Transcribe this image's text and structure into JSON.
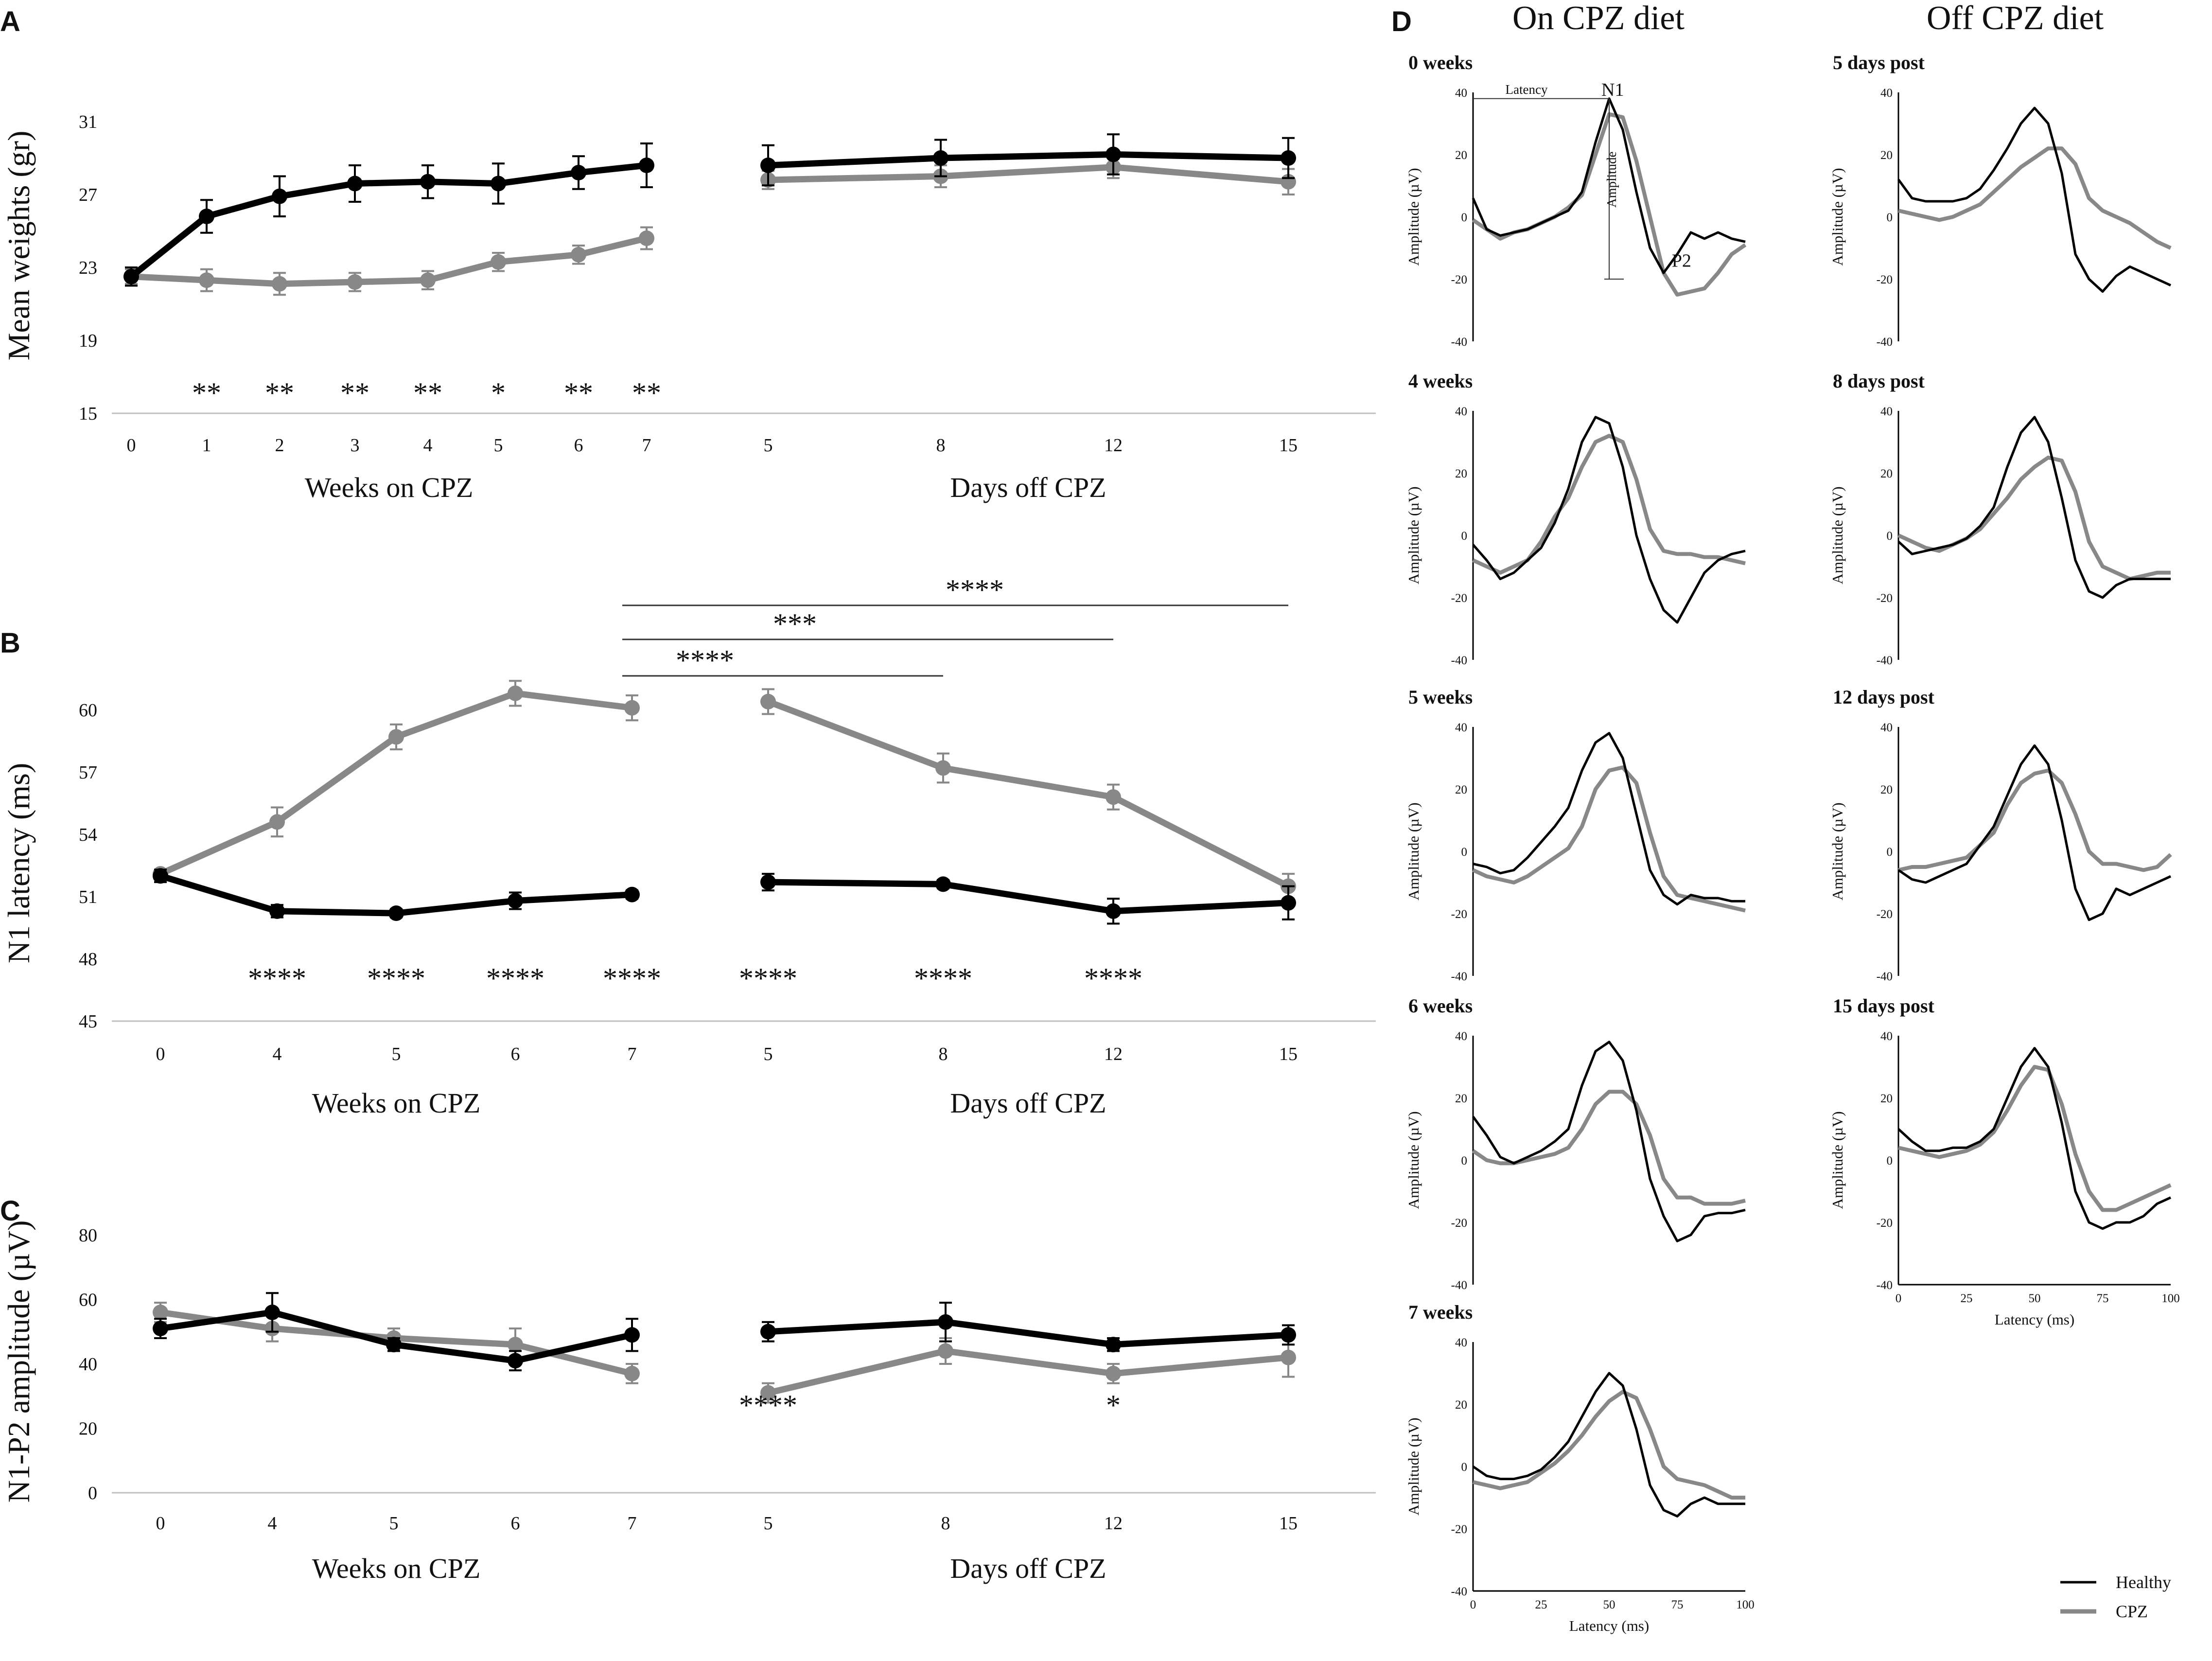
{
  "panel_labels": {
    "a": "A",
    "b": "B",
    "c": "C",
    "d": "D"
  },
  "colors": {
    "healthy": "#000000",
    "cpz": "#888888",
    "axis": "#bfbfbf"
  },
  "chart_data": [
    {
      "id": "A",
      "type": "line",
      "ylabel": "Mean weights (gr)",
      "ylim": [
        15,
        31
      ],
      "yticks": [
        "15",
        "19",
        "23",
        "27",
        "31"
      ],
      "left": {
        "xlabel": "Weeks on CPZ",
        "x": [
          "0",
          "1",
          "2",
          "3",
          "4",
          "5",
          "6",
          "7"
        ],
        "series": [
          {
            "name": "Healthy",
            "values": [
              22.5,
              25.8,
              26.9,
              27.6,
              27.7,
              27.6,
              28.2,
              28.6
            ],
            "err": [
              0.5,
              0.9,
              1.1,
              1.0,
              0.9,
              1.1,
              0.9,
              1.2
            ]
          },
          {
            "name": "CPZ",
            "values": [
              22.5,
              22.3,
              22.1,
              22.2,
              22.3,
              23.3,
              23.7,
              24.6
            ],
            "err": [
              0.4,
              0.6,
              0.6,
              0.5,
              0.5,
              0.5,
              0.5,
              0.6
            ]
          }
        ],
        "stars": [
          "",
          "**",
          "**",
          "**",
          "**",
          "*",
          "**",
          "**"
        ]
      },
      "right": {
        "xlabel": "Days off CPZ",
        "x": [
          "5",
          "8",
          "12",
          "15"
        ],
        "series": [
          {
            "name": "Healthy",
            "values": [
              28.6,
              29.0,
              29.2,
              29.0
            ],
            "err": [
              1.1,
              1.0,
              1.1,
              1.1
            ]
          },
          {
            "name": "CPZ",
            "values": [
              27.8,
              28.0,
              28.5,
              27.7
            ],
            "err": [
              0.5,
              0.6,
              0.6,
              0.7
            ]
          }
        ]
      }
    },
    {
      "id": "B",
      "type": "line",
      "ylabel": "N1 latency (ms)",
      "ylim": [
        45,
        60
      ],
      "yticks": [
        "45",
        "48",
        "51",
        "54",
        "57",
        "60"
      ],
      "left": {
        "xlabel": "Weeks on CPZ",
        "x": [
          "0",
          "4",
          "5",
          "6",
          "7"
        ],
        "series": [
          {
            "name": "Healthy",
            "values": [
              52.0,
              50.3,
              50.2,
              50.8,
              51.1
            ],
            "err": [
              0.3,
              0.3,
              0.2,
              0.4,
              0.2
            ]
          },
          {
            "name": "CPZ",
            "values": [
              52.1,
              54.6,
              58.7,
              60.8,
              60.1
            ],
            "err": [
              0.2,
              0.7,
              0.6,
              0.6,
              0.6
            ]
          }
        ],
        "stars": [
          "",
          "****",
          "****",
          "****",
          "****"
        ]
      },
      "right": {
        "xlabel": "Days off CPZ",
        "x": [
          "5",
          "8",
          "12",
          "15"
        ],
        "series": [
          {
            "name": "Healthy",
            "values": [
              51.7,
              51.6,
              50.3,
              50.7
            ],
            "err": [
              0.4,
              0.2,
              0.6,
              0.8
            ]
          },
          {
            "name": "CPZ",
            "values": [
              60.4,
              57.2,
              55.8,
              51.5
            ],
            "err": [
              0.6,
              0.7,
              0.6,
              0.6
            ]
          }
        ],
        "stars": [
          "****",
          "****",
          "****",
          ""
        ]
      },
      "brackets": [
        {
          "from": "7 weeks",
          "to": "8 days",
          "label": "****"
        },
        {
          "from": "7 weeks",
          "to": "12 days",
          "label": "***"
        },
        {
          "from": "7 weeks",
          "to": "15 days",
          "label": "****"
        }
      ]
    },
    {
      "id": "C",
      "type": "line",
      "ylabel": "N1-P2 amplitude (µV)",
      "ylim": [
        0,
        80
      ],
      "yticks": [
        "0",
        "20",
        "40",
        "60",
        "80"
      ],
      "left": {
        "xlabel": "Weeks on CPZ",
        "x": [
          "0",
          "4",
          "5",
          "6",
          "7"
        ],
        "series": [
          {
            "name": "Healthy",
            "values": [
              51,
              56,
              46,
              41,
              49
            ],
            "err": [
              3,
              6,
              2,
              3,
              5
            ]
          },
          {
            "name": "CPZ",
            "values": [
              56,
              51,
              48,
              46,
              37
            ],
            "err": [
              3,
              4,
              3,
              5,
              3
            ]
          }
        ]
      },
      "right": {
        "xlabel": "Days off CPZ",
        "x": [
          "5",
          "8",
          "12",
          "15"
        ],
        "series": [
          {
            "name": "Healthy",
            "values": [
              50,
              53,
              46,
              49
            ],
            "err": [
              3,
              6,
              2,
              3
            ]
          },
          {
            "name": "CPZ",
            "values": [
              31,
              44,
              37,
              42
            ],
            "err": [
              3,
              4,
              3,
              6
            ]
          }
        ],
        "stars": [
          "****",
          "",
          "*",
          ""
        ]
      }
    },
    {
      "id": "D",
      "type": "line",
      "col_titles": [
        "On CPZ diet",
        "Off CPZ diet"
      ],
      "ylabel": "Amplitude (µV)",
      "xlabel": "Latency (ms)",
      "yticks": [
        "40",
        "20",
        "0",
        "-20",
        "-40"
      ],
      "xticks": [
        "0",
        "25",
        "50",
        "75",
        "100"
      ],
      "xlim": [
        0,
        100
      ],
      "ylim": [
        -40,
        40
      ],
      "x": [
        0,
        5,
        10,
        15,
        20,
        25,
        30,
        35,
        40,
        45,
        50,
        55,
        60,
        65,
        70,
        75,
        80,
        85,
        90,
        95,
        100
      ],
      "legend": [
        "Healthy",
        "CPZ"
      ],
      "annotations": {
        "latency": "Latency",
        "n1": "N1",
        "amplitude": "Amplitude",
        "p2": "P2"
      },
      "waveforms": [
        {
          "title": "0 weeks",
          "healthy": [
            6,
            -4,
            -6,
            -5,
            -4,
            -2,
            0,
            2,
            8,
            24,
            38,
            28,
            8,
            -10,
            -18,
            -12,
            -5,
            -7,
            -5,
            -7,
            -8
          ],
          "cpz": [
            -1,
            -4,
            -7,
            -5,
            -4,
            -2,
            0,
            3,
            7,
            20,
            33,
            32,
            18,
            0,
            -18,
            -25,
            -24,
            -23,
            -18,
            -12,
            -9
          ]
        },
        {
          "title": "5 days post",
          "healthy": [
            12,
            6,
            5,
            5,
            5,
            6,
            9,
            15,
            22,
            30,
            35,
            30,
            14,
            -12,
            -20,
            -24,
            -19,
            -16,
            -18,
            -20,
            -22
          ],
          "cpz": [
            2,
            1,
            0,
            -1,
            0,
            2,
            4,
            8,
            12,
            16,
            19,
            22,
            22,
            17,
            6,
            2,
            0,
            -2,
            -5,
            -8,
            -10
          ]
        },
        {
          "title": "4 weeks",
          "healthy": [
            -3,
            -8,
            -14,
            -12,
            -8,
            -4,
            4,
            15,
            30,
            38,
            36,
            22,
            0,
            -14,
            -24,
            -28,
            -20,
            -12,
            -8,
            -6,
            -5
          ],
          "cpz": [
            -8,
            -10,
            -12,
            -10,
            -8,
            -2,
            6,
            12,
            22,
            30,
            32,
            30,
            18,
            2,
            -5,
            -6,
            -6,
            -7,
            -7,
            -8,
            -9
          ]
        },
        {
          "title": "8 days post",
          "healthy": [
            -2,
            -6,
            -5,
            -4,
            -3,
            -1,
            3,
            9,
            22,
            33,
            38,
            30,
            12,
            -8,
            -18,
            -20,
            -16,
            -14,
            -14,
            -14,
            -14
          ],
          "cpz": [
            0,
            -2,
            -4,
            -5,
            -3,
            -1,
            2,
            7,
            12,
            18,
            22,
            25,
            24,
            14,
            -2,
            -10,
            -12,
            -14,
            -13,
            -12,
            -12
          ]
        },
        {
          "title": "5 weeks",
          "healthy": [
            -4,
            -5,
            -7,
            -6,
            -2,
            3,
            8,
            14,
            26,
            35,
            38,
            30,
            12,
            -6,
            -14,
            -17,
            -14,
            -15,
            -15,
            -16,
            -16
          ],
          "cpz": [
            -6,
            -8,
            -9,
            -10,
            -8,
            -5,
            -2,
            1,
            8,
            20,
            26,
            27,
            22,
            6,
            -8,
            -14,
            -15,
            -16,
            -17,
            -18,
            -19
          ]
        },
        {
          "title": "12 days post",
          "healthy": [
            -6,
            -9,
            -10,
            -8,
            -6,
            -4,
            2,
            8,
            18,
            28,
            34,
            28,
            10,
            -12,
            -22,
            -20,
            -12,
            -14,
            -12,
            -10,
            -8
          ],
          "cpz": [
            -6,
            -5,
            -5,
            -4,
            -3,
            -2,
            2,
            6,
            15,
            22,
            25,
            26,
            22,
            12,
            0,
            -4,
            -4,
            -5,
            -6,
            -5,
            -1
          ]
        },
        {
          "title": "6 weeks",
          "healthy": [
            14,
            8,
            1,
            -1,
            1,
            3,
            6,
            10,
            24,
            35,
            38,
            32,
            16,
            -6,
            -18,
            -26,
            -24,
            -18,
            -17,
            -17,
            -16
          ],
          "cpz": [
            3,
            0,
            -1,
            -1,
            0,
            1,
            2,
            4,
            10,
            18,
            22,
            22,
            18,
            8,
            -6,
            -12,
            -12,
            -14,
            -14,
            -14,
            -13
          ]
        },
        {
          "title": "15 days post",
          "healthy": [
            10,
            6,
            3,
            3,
            4,
            4,
            6,
            10,
            20,
            30,
            36,
            30,
            12,
            -10,
            -20,
            -22,
            -20,
            -20,
            -18,
            -14,
            -12
          ],
          "cpz": [
            4,
            3,
            2,
            1,
            2,
            3,
            5,
            9,
            16,
            24,
            30,
            29,
            18,
            2,
            -10,
            -16,
            -16,
            -14,
            -12,
            -10,
            -8
          ]
        },
        {
          "title": "7 weeks",
          "healthy": [
            0,
            -3,
            -4,
            -4,
            -3,
            -1,
            3,
            8,
            16,
            24,
            30,
            26,
            12,
            -6,
            -14,
            -16,
            -12,
            -10,
            -12,
            -12,
            -12
          ],
          "cpz": [
            -5,
            -6,
            -7,
            -6,
            -5,
            -2,
            1,
            5,
            10,
            16,
            21,
            24,
            22,
            12,
            0,
            -4,
            -5,
            -6,
            -8,
            -10,
            -10
          ]
        }
      ]
    }
  ]
}
